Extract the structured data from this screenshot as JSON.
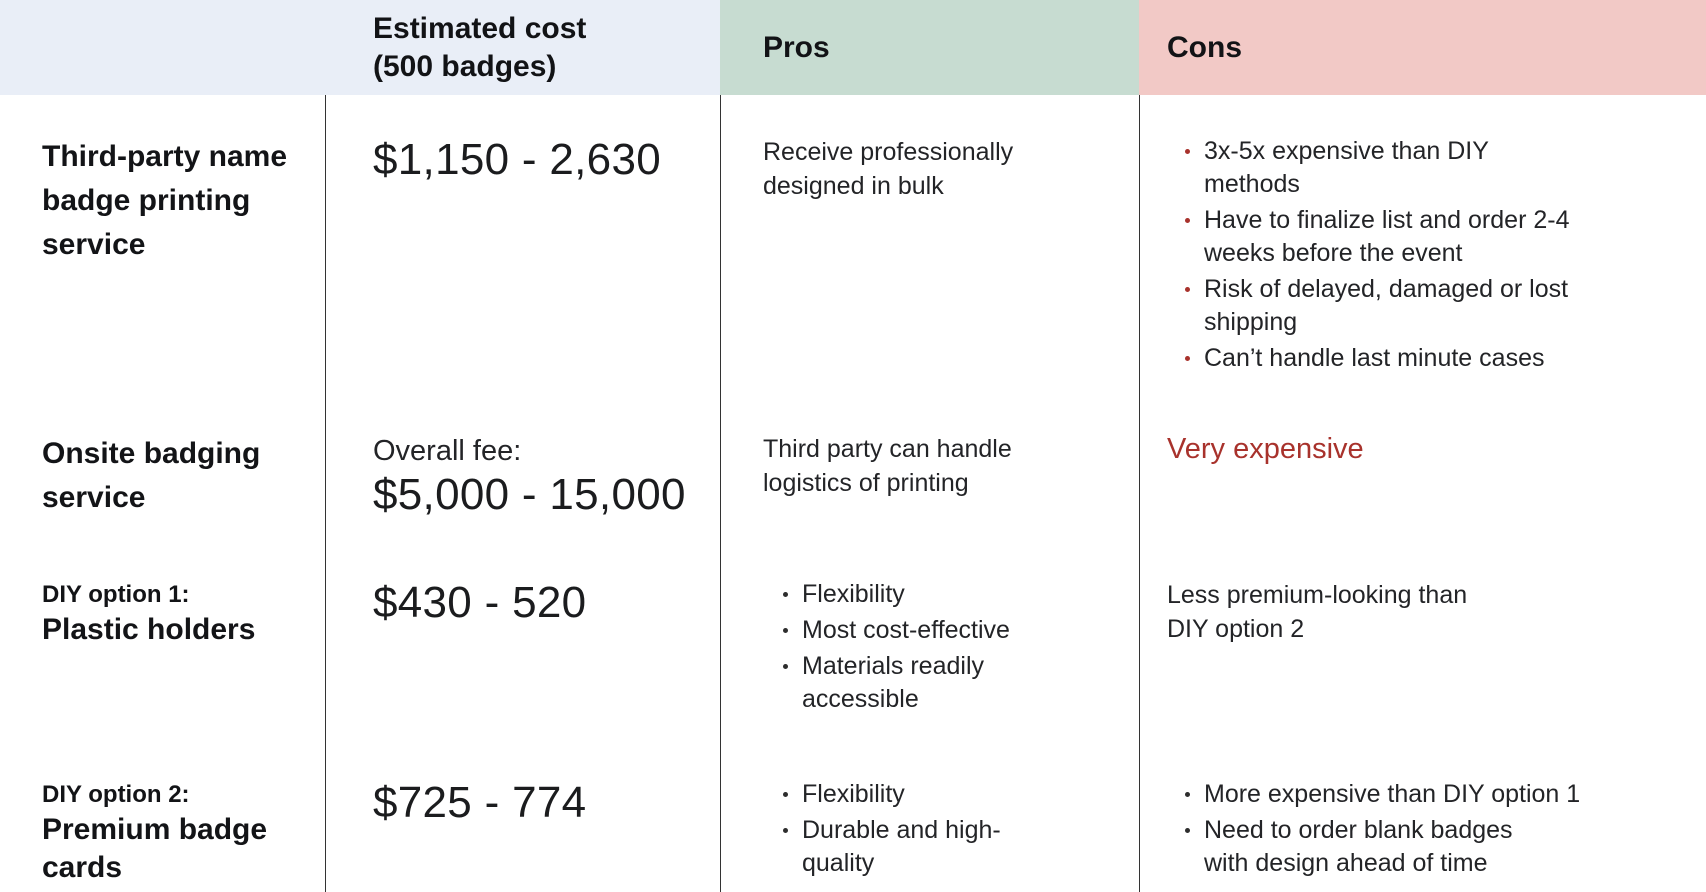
{
  "colors": {
    "header_cost_bg": "#e9eef7",
    "pros_header_bg": "#c7dcd1",
    "cons_header_bg": "#f2c9c6",
    "row_alt_bg": "#f4f4f5",
    "accent_red": "#a8322c",
    "divider": "#333333"
  },
  "header": {
    "estimated_cost": "Estimated cost\n(500 badges)",
    "pros": "Pros",
    "cons": "Cons"
  },
  "rows": [
    {
      "label": "Third-party name\nbadge printing\nservice",
      "cost": "$1,150 - 2,630",
      "pros_text": "Receive professionally\ndesigned in bulk",
      "cons_items": [
        "3x-5x expensive than DIY\nmethods",
        "Have to finalize list and order 2-4\nweeks before the event",
        "Risk of delayed, damaged or lost\nshipping",
        "Can’t handle last minute cases"
      ]
    },
    {
      "label": "Onsite badging\nservice",
      "cost_prefix": "Overall fee:",
      "cost": "$5,000 - 15,000",
      "pros_text": "Third party can handle\nlogistics of printing",
      "cons_text": "Very expensive"
    },
    {
      "label_small": "DIY option 1:",
      "label": "Plastic holders",
      "cost": "$430 - 520",
      "pros_items": [
        "Flexibility",
        "Most cost-effective",
        "Materials readily\naccessible"
      ],
      "cons_text": "Less premium-looking than\nDIY option 2"
    },
    {
      "label_small": "DIY option 2:",
      "label": "Premium badge\ncards",
      "cost": "$725 - 774",
      "pros_items": [
        "Flexibility",
        "Durable and high-\nquality"
      ],
      "cons_items": [
        "More expensive than DIY option 1",
        "Need to order blank badges\nwith design ahead of time"
      ]
    }
  ]
}
